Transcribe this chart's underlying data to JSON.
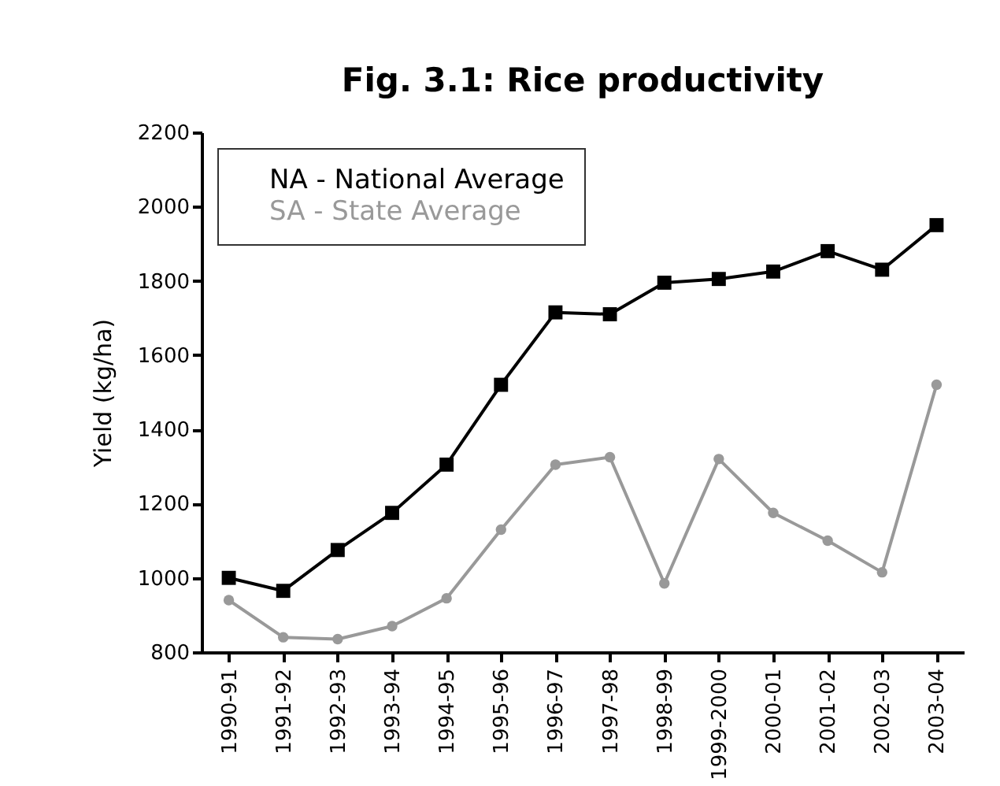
{
  "chart_data": {
    "type": "line",
    "title": "Fig. 3.1: Rice productivity",
    "ylabel": "Yield (kg/ha)",
    "categories": [
      "1990-91",
      "1991-92",
      "1992-93",
      "1993-94",
      "1994-95",
      "1995-96",
      "1996-97",
      "1997-98",
      "1998-99",
      "1999-2000",
      "2000-01",
      "2001-02",
      "2002-03",
      "2003-04"
    ],
    "series": [
      {
        "name": "NA - National Average",
        "color": "#000000",
        "marker": "square",
        "values": [
          1000,
          965,
          1075,
          1175,
          1305,
          1520,
          1715,
          1710,
          1795,
          1805,
          1825,
          1880,
          1830,
          1950
        ]
      },
      {
        "name": "SA - State Average",
        "color": "#999999",
        "marker": "circle",
        "values": [
          940,
          840,
          835,
          870,
          945,
          1130,
          1305,
          1325,
          985,
          1320,
          1175,
          1100,
          1015,
          1520
        ]
      }
    ],
    "ylim": [
      800,
      2200
    ],
    "yticks": [
      800,
      1000,
      1200,
      1400,
      1600,
      1800,
      2000,
      2200
    ],
    "grid": false,
    "legend": "top left"
  }
}
